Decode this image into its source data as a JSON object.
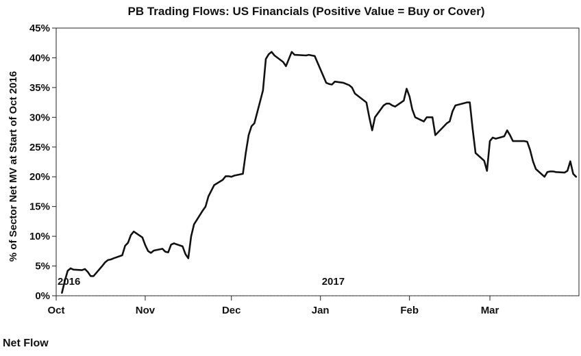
{
  "footer": "Net Flow",
  "chart_data": {
    "type": "line",
    "title": "PB Trading Flows: US Financials (Positive Value = Buy or Cover)",
    "ylabel": "% of Sector Net MV at Start of Oct 2016",
    "xlabel": "",
    "ylim": [
      0,
      45
    ],
    "yticks": [
      "0%",
      "5%",
      "10%",
      "15%",
      "20%",
      "25%",
      "30%",
      "35%",
      "40%",
      "45%"
    ],
    "xlim": [
      "2016-10-01",
      "2017-03-31"
    ],
    "xticks": [
      {
        "date": "2016-10-01",
        "label": "Oct"
      },
      {
        "date": "2016-11-01",
        "label": "Nov"
      },
      {
        "date": "2016-12-01",
        "label": "Dec"
      },
      {
        "date": "2017-01-01",
        "label": "Jan"
      },
      {
        "date": "2017-02-01",
        "label": "Feb"
      },
      {
        "date": "2017-03-01",
        "label": "Mar"
      }
    ],
    "year_labels": [
      {
        "date": "2016-10-01",
        "label": "2016"
      },
      {
        "date": "2017-01-01",
        "label": "2017"
      }
    ],
    "reference_line": {
      "y": 0,
      "style": "dotted"
    },
    "grid": false,
    "series": [
      {
        "color": "#111111",
        "x": [
          "2016-10-03",
          "2016-10-04",
          "2016-10-05",
          "2016-10-06",
          "2016-10-07",
          "2016-10-10",
          "2016-10-11",
          "2016-10-12",
          "2016-10-13",
          "2016-10-14",
          "2016-10-17",
          "2016-10-18",
          "2016-10-19",
          "2016-10-20",
          "2016-10-21",
          "2016-10-24",
          "2016-10-25",
          "2016-10-26",
          "2016-10-27",
          "2016-10-28",
          "2016-10-31",
          "2016-11-01",
          "2016-11-02",
          "2016-11-03",
          "2016-11-04",
          "2016-11-07",
          "2016-11-08",
          "2016-11-09",
          "2016-11-10",
          "2016-11-11",
          "2016-11-14",
          "2016-11-15",
          "2016-11-16",
          "2016-11-17",
          "2016-11-18",
          "2016-11-21",
          "2016-11-22",
          "2016-11-23",
          "2016-11-25",
          "2016-11-28",
          "2016-11-29",
          "2016-11-30",
          "2016-12-01",
          "2016-12-02",
          "2016-12-05",
          "2016-12-06",
          "2016-12-07",
          "2016-12-08",
          "2016-12-09",
          "2016-12-12",
          "2016-12-13",
          "2016-12-14",
          "2016-12-15",
          "2016-12-16",
          "2016-12-19",
          "2016-12-20",
          "2016-12-21",
          "2016-12-22",
          "2016-12-23",
          "2016-12-27",
          "2016-12-28",
          "2016-12-29",
          "2016-12-30",
          "2017-01-03",
          "2017-01-04",
          "2017-01-05",
          "2017-01-06",
          "2017-01-09",
          "2017-01-10",
          "2017-01-11",
          "2017-01-12",
          "2017-01-13",
          "2017-01-17",
          "2017-01-18",
          "2017-01-19",
          "2017-01-20",
          "2017-01-23",
          "2017-01-24",
          "2017-01-25",
          "2017-01-26",
          "2017-01-27",
          "2017-01-30",
          "2017-01-31",
          "2017-02-01",
          "2017-02-02",
          "2017-02-03",
          "2017-02-06",
          "2017-02-07",
          "2017-02-08",
          "2017-02-09",
          "2017-02-10",
          "2017-02-13",
          "2017-02-14",
          "2017-02-15",
          "2017-02-16",
          "2017-02-17",
          "2017-02-21",
          "2017-02-22",
          "2017-02-23",
          "2017-02-24",
          "2017-02-27",
          "2017-02-28",
          "2017-03-01",
          "2017-03-02",
          "2017-03-03",
          "2017-03-06",
          "2017-03-07",
          "2017-03-08",
          "2017-03-09",
          "2017-03-10",
          "2017-03-13",
          "2017-03-14",
          "2017-03-15",
          "2017-03-16",
          "2017-03-17",
          "2017-03-20",
          "2017-03-21",
          "2017-03-22",
          "2017-03-23",
          "2017-03-24",
          "2017-03-27",
          "2017-03-28",
          "2017-03-29",
          "2017-03-30",
          "2017-03-31"
        ],
        "values": [
          0.5,
          2.5,
          4.2,
          4.6,
          4.4,
          4.3,
          4.5,
          4.0,
          3.3,
          3.3,
          5.0,
          5.6,
          6.0,
          6.1,
          6.3,
          6.8,
          8.4,
          8.9,
          10.2,
          10.8,
          9.8,
          8.5,
          7.5,
          7.2,
          7.6,
          7.9,
          7.4,
          7.3,
          8.6,
          8.8,
          8.3,
          7.0,
          6.3,
          10.0,
          12.0,
          14.3,
          15.0,
          16.7,
          18.6,
          19.5,
          20.1,
          20.1,
          20.0,
          20.2,
          20.5,
          24.0,
          27.0,
          28.5,
          29.0,
          34.5,
          39.8,
          40.6,
          41.0,
          40.4,
          39.3,
          38.6,
          39.8,
          41.0,
          40.5,
          40.4,
          40.5,
          40.4,
          40.3,
          35.8,
          35.6,
          35.5,
          36.0,
          35.8,
          35.6,
          35.4,
          35.0,
          34.0,
          32.5,
          30.0,
          27.8,
          30.0,
          32.0,
          32.3,
          32.3,
          32.0,
          31.8,
          32.8,
          34.8,
          33.5,
          31.3,
          30.0,
          29.3,
          30.0,
          30.0,
          30.0,
          27.0,
          28.5,
          29.0,
          29.3,
          31.0,
          32.0,
          32.5,
          32.5,
          28.0,
          24.0,
          22.7,
          21.0,
          26.0,
          26.6,
          26.4,
          26.8,
          27.8,
          27.0,
          26.0,
          26.0,
          26.0,
          25.9,
          24.5,
          22.6,
          21.3,
          20.0,
          20.8,
          20.9,
          20.9,
          20.8,
          20.7,
          21.0,
          22.6,
          20.5,
          20.0
        ]
      }
    ]
  }
}
